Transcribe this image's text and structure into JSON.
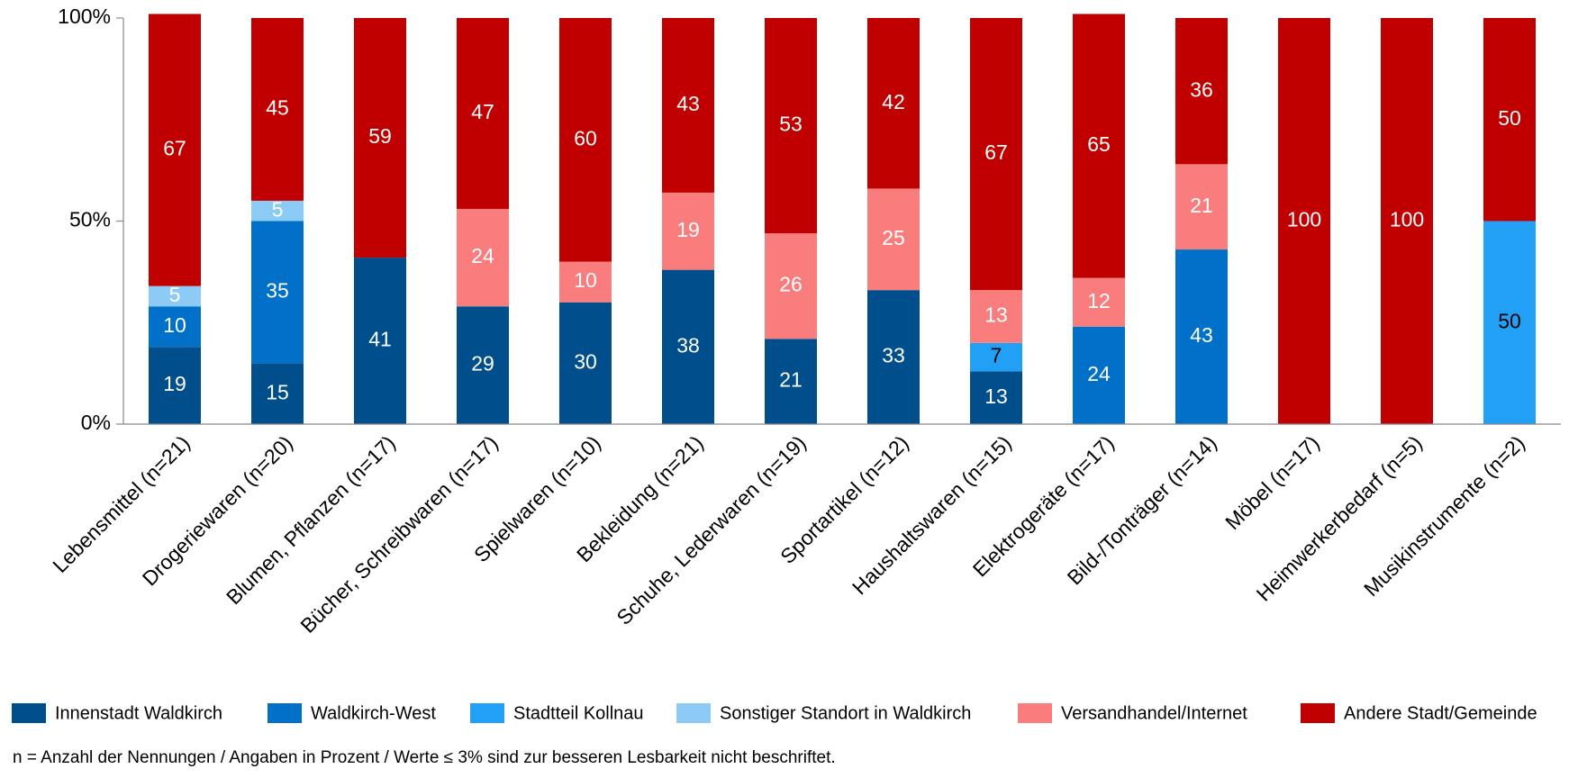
{
  "chart_data": {
    "type": "stacked_bar",
    "categories": [
      "Lebensmittel (n=21)",
      "Drogeriewaren (n=20)",
      "Blumen, Pflanzen (n=17)",
      "Bücher, Schreibwaren (n=17)",
      "Spielwaren (n=10)",
      "Bekleidung (n=21)",
      "Schuhe, Lederwaren (n=19)",
      "Sportartikel (n=12)",
      "Haushaltswaren (n=15)",
      "Elektrogeräte (n=17)",
      "Bild-/Tonträger (n=14)",
      "Möbel (n=17)",
      "Heimwerkerbedarf (n=5)",
      "Musikinstrumente (n=2)"
    ],
    "series": [
      {
        "name": "Innenstadt Waldkirch",
        "color": "#004f8c",
        "label_color": "#ffffff",
        "values": [
          19,
          15,
          41,
          29,
          30,
          38,
          21,
          33,
          13,
          null,
          null,
          null,
          null,
          null
        ]
      },
      {
        "name": "Waldkirch-West",
        "color": "#0070c8",
        "label_color": "#ffffff",
        "values": [
          10,
          35,
          null,
          null,
          null,
          null,
          null,
          null,
          null,
          24,
          43,
          null,
          null,
          null
        ]
      },
      {
        "name": "Stadtteil Kollnau",
        "color": "#22a0f5",
        "label_color": "#000000",
        "values": [
          null,
          null,
          null,
          null,
          null,
          null,
          null,
          null,
          7,
          null,
          null,
          null,
          null,
          50
        ]
      },
      {
        "name": "Sonstiger Standort in Waldkirch",
        "color": "#8ccbf5",
        "label_color": "#ffffff",
        "values": [
          5,
          5,
          null,
          null,
          null,
          null,
          null,
          null,
          null,
          null,
          null,
          null,
          null,
          null
        ]
      },
      {
        "name": "Versandhandel/Internet",
        "color": "#fa7d7d",
        "label_color": "#ffffff",
        "values": [
          null,
          null,
          null,
          24,
          10,
          19,
          26,
          25,
          13,
          12,
          21,
          null,
          null,
          null
        ]
      },
      {
        "name": "Andere Stadt/Gemeinde",
        "color": "#c00000",
        "label_color": "#ffffff",
        "values": [
          67,
          45,
          59,
          47,
          60,
          43,
          53,
          42,
          67,
          65,
          36,
          100,
          100,
          50
        ]
      }
    ],
    "ylim": [
      0,
      100
    ],
    "yticks": [
      {
        "value": 0,
        "label": "0%"
      },
      {
        "value": 50,
        "label": "50%"
      },
      {
        "value": 100,
        "label": "100%"
      }
    ],
    "note": "n = Anzahl der Nennungen  /  Angaben in Prozent  /  Werte ≤ 3% sind zur besseren Lesbarkeit nicht beschriftet."
  }
}
